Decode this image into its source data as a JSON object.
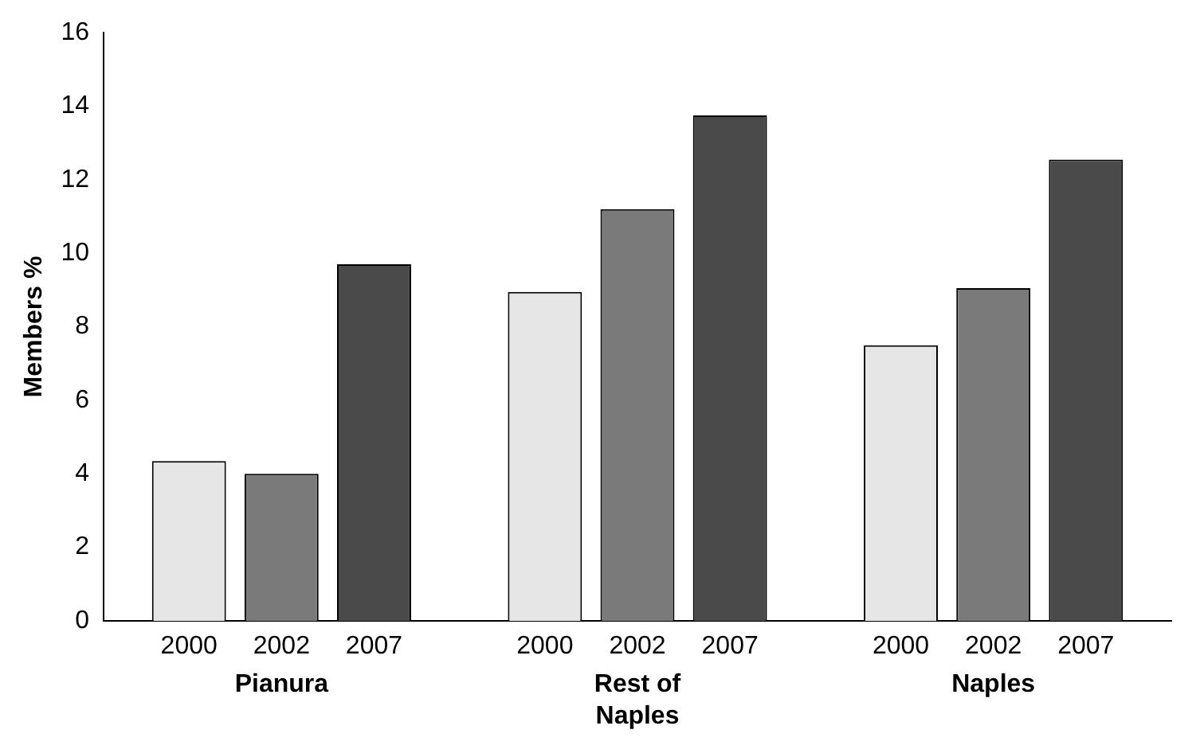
{
  "chart_data": {
    "type": "bar",
    "ylabel": "Members %",
    "categories": [
      "Pianura",
      "Rest of Naples",
      "Naples"
    ],
    "series": [
      {
        "name": "2000",
        "color": "#e6e6e6",
        "values": [
          4.35,
          8.95,
          7.5
        ]
      },
      {
        "name": "2002",
        "color": "#7a7a7a",
        "values": [
          4.0,
          11.2,
          9.05
        ]
      },
      {
        "name": "2007",
        "color": "#4a4a4a",
        "values": [
          9.7,
          13.75,
          12.55
        ]
      }
    ],
    "ylim": [
      0,
      16
    ],
    "yticks": [
      0,
      2,
      4,
      6,
      8,
      10,
      12,
      14,
      16
    ],
    "grid": false,
    "legend": false
  }
}
